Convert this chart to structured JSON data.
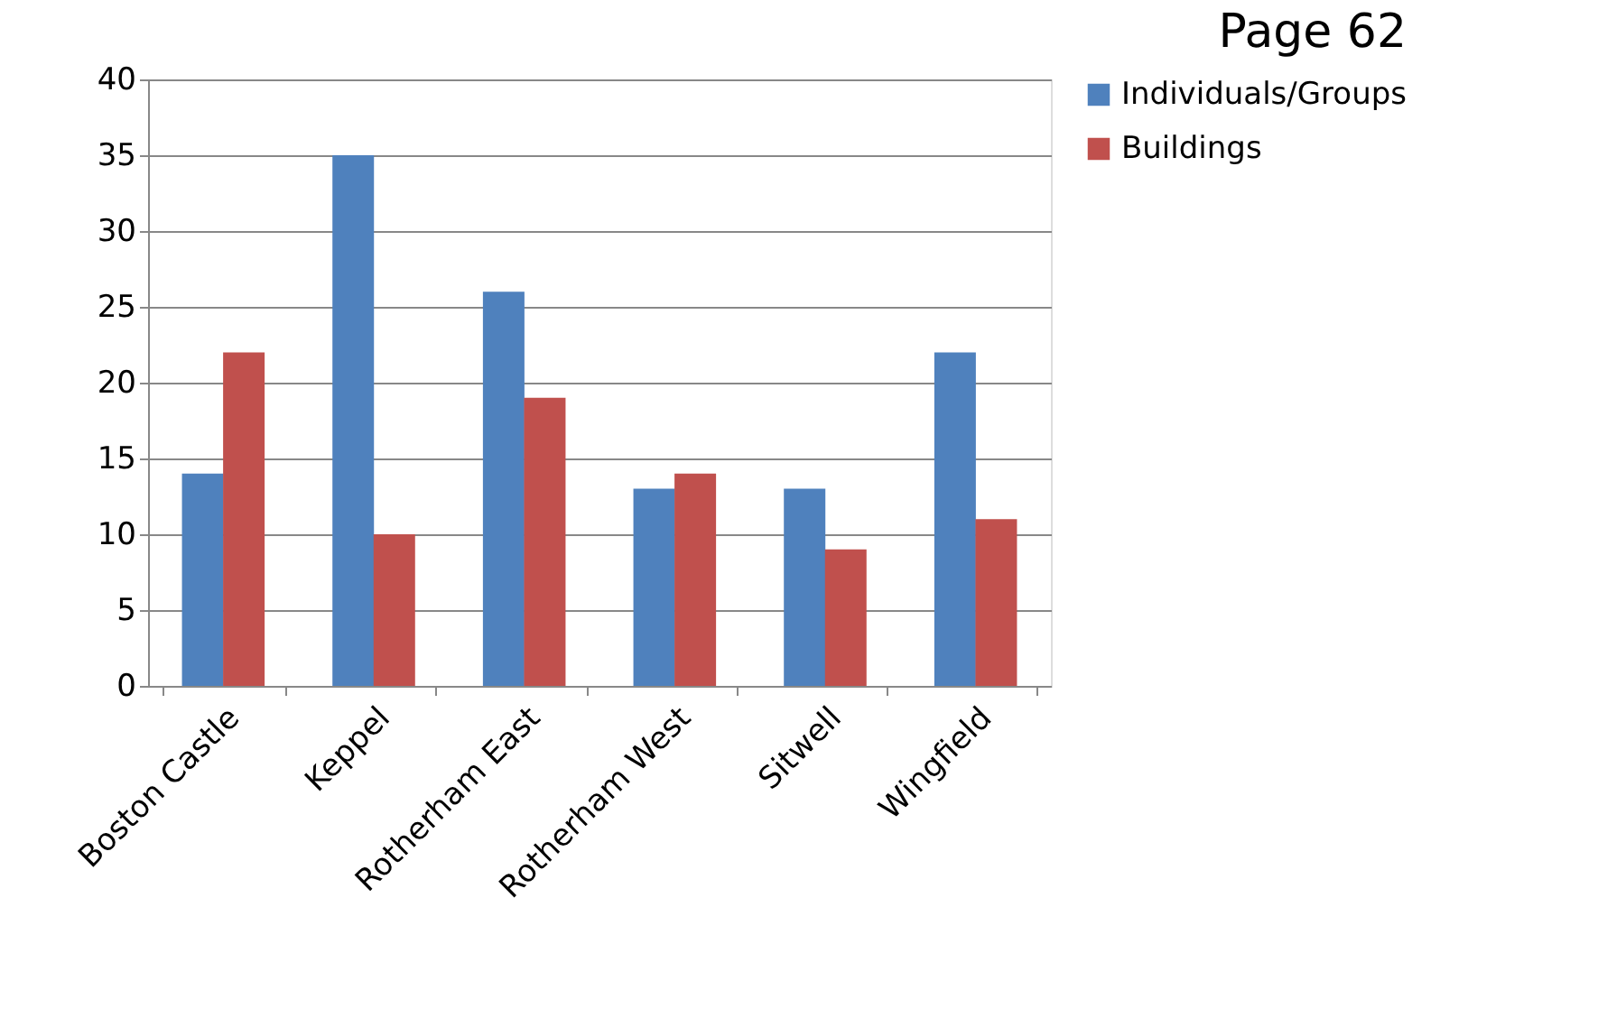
{
  "chart_data": {
    "type": "bar",
    "title": "Page 62",
    "categories": [
      "Boston Castle",
      "Keppel",
      "Rotherham East",
      "Rotherham West",
      "Sitwell",
      "Wingfield"
    ],
    "series": [
      {
        "name": "Individuals/Groups",
        "color": "#4f81bd",
        "values": [
          14,
          35,
          26,
          13,
          13,
          22
        ]
      },
      {
        "name": "Buildings",
        "color": "#c0504d",
        "values": [
          22,
          10,
          19,
          14,
          9,
          11
        ]
      }
    ],
    "ylim": [
      0,
      40
    ],
    "yticks": [
      0,
      5,
      10,
      15,
      20,
      25,
      30,
      35,
      40
    ],
    "grid": "y",
    "legend": "right"
  }
}
